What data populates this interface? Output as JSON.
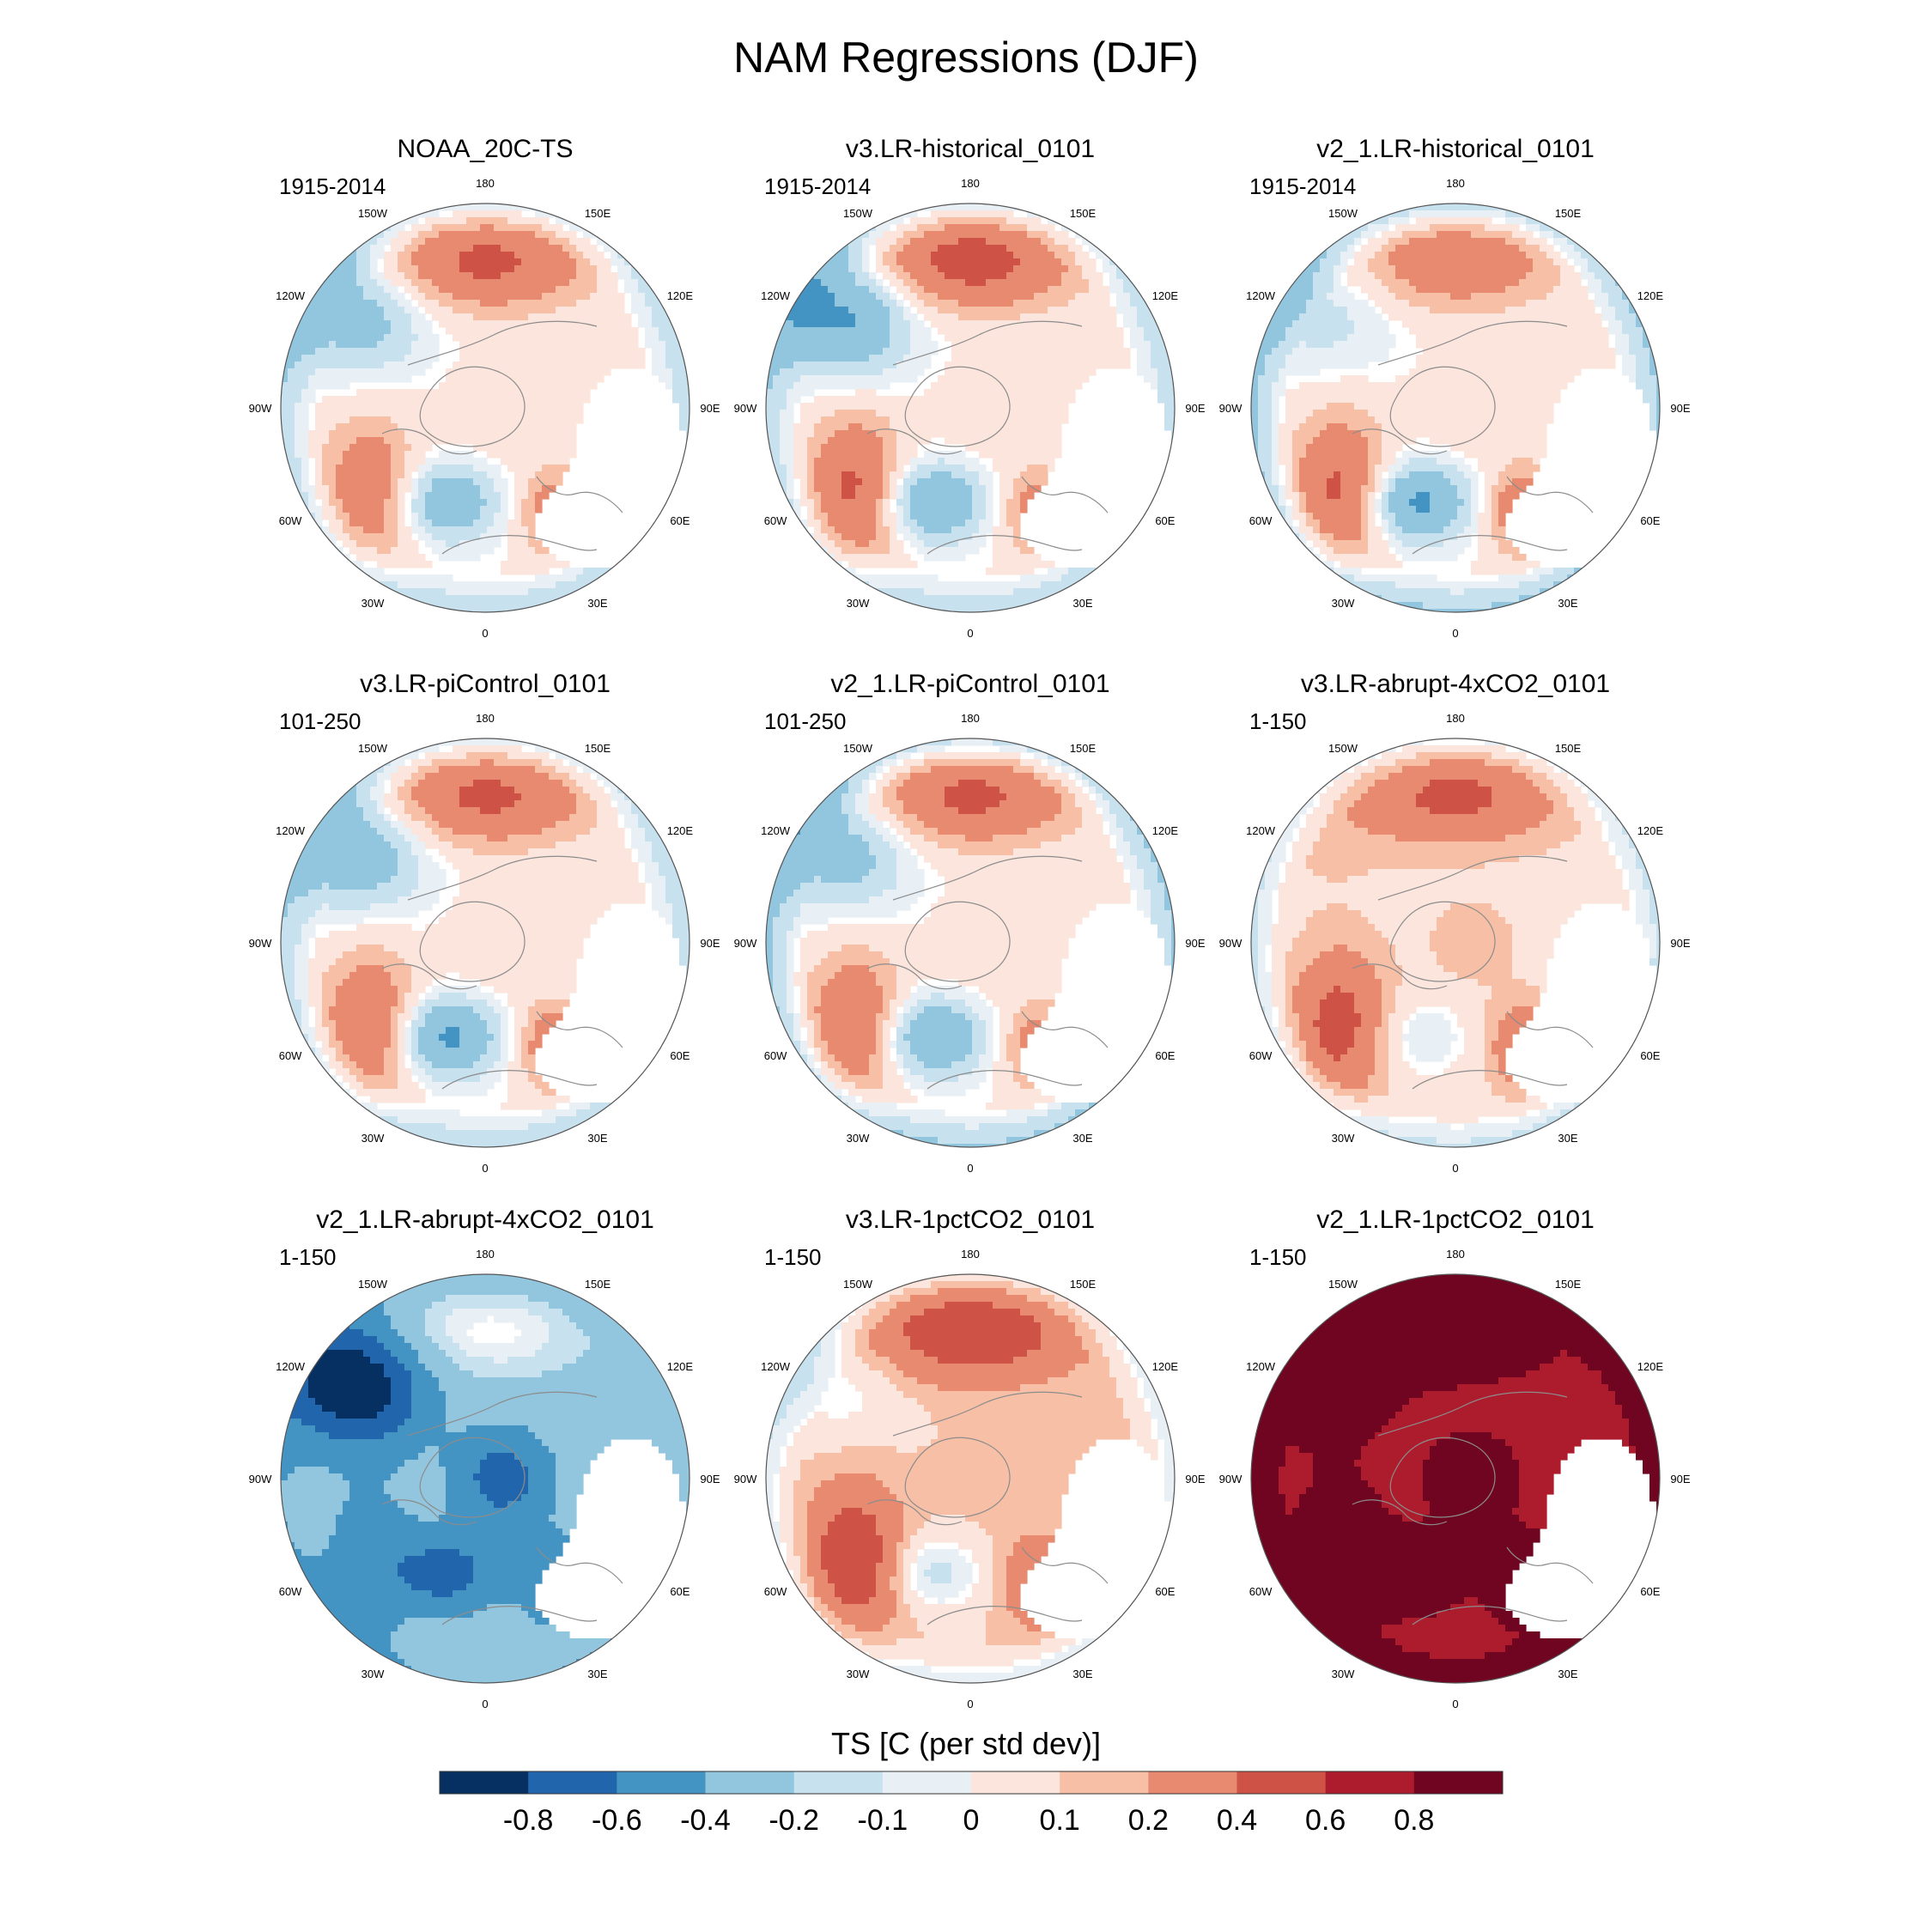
{
  "title": "NAM Regressions (DJF)",
  "colorbar": {
    "title": "TS [C (per std dev)]",
    "levels": [
      "-0.8",
      "-0.6",
      "-0.4",
      "-0.2",
      "-0.1",
      "0",
      "0.1",
      "0.2",
      "0.4",
      "0.6",
      "0.8"
    ],
    "colors": [
      "#053061",
      "#2166ac",
      "#4393c3",
      "#92c5de",
      "#c7e1ef",
      "#e8eff5",
      "#fbe5dc",
      "#f7c0a6",
      "#e78a6f",
      "#cf5246",
      "#ad1c2d",
      "#6f0520"
    ]
  },
  "longitude_labels": [
    "180",
    "150E",
    "120E",
    "90E",
    "60E",
    "30E",
    "0",
    "30W",
    "60W",
    "90W",
    "120W",
    "150W"
  ],
  "palette": {
    "land_outline": "#8c8c8c",
    "stipple": "#000000",
    "ocean_bg": "#ffffff"
  },
  "panels": [
    {
      "title": "NOAA_20C-TS",
      "period": "1915-2014",
      "pattern": {
        "pacific": 0.45,
        "westcoast": -0.3,
        "atlantic_north": -0.35,
        "atlantic_sub": 0.35,
        "arctic": 0.1,
        "eurasia": 0.3,
        "tropics": -0.2,
        "base": 0.0
      }
    },
    {
      "title": "v3.LR-historical_0101",
      "period": "1915-2014",
      "pattern": {
        "pacific": 0.5,
        "westcoast": -0.45,
        "atlantic_north": -0.4,
        "atlantic_sub": 0.45,
        "arctic": 0.08,
        "eurasia": 0.3,
        "tropics": -0.2,
        "base": 0.0
      }
    },
    {
      "title": "v2_1.LR-historical_0101",
      "period": "1915-2014",
      "pattern": {
        "pacific": 0.35,
        "westcoast": -0.15,
        "atlantic_north": -0.45,
        "atlantic_sub": 0.45,
        "arctic": 0.1,
        "eurasia": 0.4,
        "tropics": -0.25,
        "base": 0.0
      }
    },
    {
      "title": "v3.LR-piControl_0101",
      "period": "101-250",
      "pattern": {
        "pacific": 0.45,
        "westcoast": -0.35,
        "atlantic_north": -0.45,
        "atlantic_sub": 0.4,
        "arctic": 0.1,
        "eurasia": 0.35,
        "tropics": -0.2,
        "base": 0.0
      }
    },
    {
      "title": "v2_1.LR-piControl_0101",
      "period": "101-250",
      "pattern": {
        "pacific": 0.45,
        "westcoast": -0.3,
        "atlantic_north": -0.4,
        "atlantic_sub": 0.4,
        "arctic": 0.1,
        "eurasia": 0.3,
        "tropics": -0.25,
        "base": 0.0
      }
    },
    {
      "title": "v3.LR-abrupt-4xCO2_0101",
      "period": "1-150",
      "pattern": {
        "pacific": 0.4,
        "westcoast": 0.05,
        "atlantic_north": -0.15,
        "atlantic_sub": 0.45,
        "arctic": 0.1,
        "eurasia": 0.35,
        "tropics": -0.2,
        "base": 0.05
      }
    },
    {
      "title": "v2_1.LR-abrupt-4xCO2_0101",
      "period": "1-150",
      "pattern": {
        "pacific": 0.3,
        "westcoast": -0.7,
        "atlantic_north": -0.4,
        "atlantic_sub": -0.2,
        "arctic": -0.4,
        "eurasia": -0.3,
        "tropics": -0.1,
        "base": -0.3
      }
    },
    {
      "title": "v3.LR-1pctCO2_0101",
      "period": "1-150",
      "pattern": {
        "pacific": 0.5,
        "westcoast": -0.15,
        "atlantic_north": -0.25,
        "atlantic_sub": 0.5,
        "arctic": 0.05,
        "eurasia": 0.35,
        "tropics": -0.2,
        "base": 0.1
      }
    },
    {
      "title": "v2_1.LR-1pctCO2_0101",
      "period": "1-150",
      "pattern": {
        "pacific": 0.5,
        "westcoast": 0.45,
        "atlantic_north": 0.5,
        "atlantic_sub": 0.55,
        "arctic": 0.4,
        "eurasia": 0.6,
        "tropics": 0.5,
        "base": 0.65
      }
    }
  ]
}
